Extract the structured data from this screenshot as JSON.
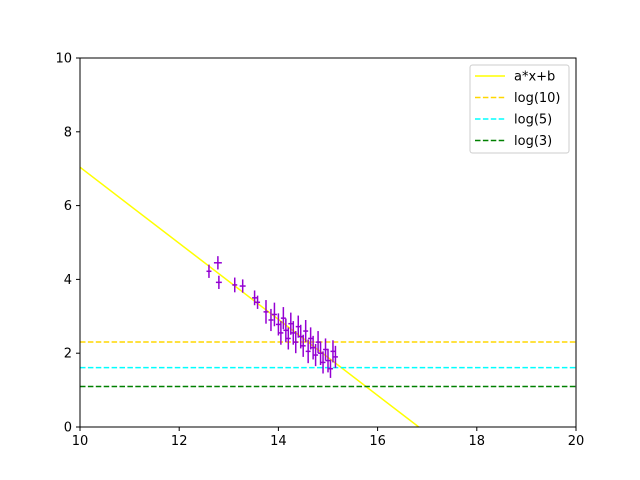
{
  "chart_data": {
    "type": "scatter",
    "title": "",
    "xlabel": "",
    "ylabel": "",
    "xlim": [
      10,
      20
    ],
    "ylim": [
      0,
      10
    ],
    "xticks": [
      10,
      12,
      14,
      16,
      18,
      20
    ],
    "yticks": [
      0,
      2,
      4,
      6,
      8,
      10
    ],
    "grid": false,
    "legend_position": "top-right",
    "series": [
      {
        "name": "a*x+b",
        "kind": "line",
        "style": "solid",
        "color": "#ffff00",
        "x": [
          10,
          16.83
        ],
        "y": [
          7.04,
          0
        ]
      },
      {
        "name": "log(10)",
        "kind": "hline",
        "style": "dashed",
        "color": "#ffd700",
        "y": 2.3026
      },
      {
        "name": "log(5)",
        "kind": "hline",
        "style": "dashed",
        "color": "#00ffff",
        "y": 1.6094
      },
      {
        "name": "log(3)",
        "kind": "hline",
        "style": "dashed",
        "color": "#008000",
        "y": 1.0986
      }
    ],
    "errorbar_data": {
      "color": "#9400d3",
      "points": [
        {
          "x": 12.6,
          "y": 4.22,
          "xerr": 0.05,
          "yerr": 0.18
        },
        {
          "x": 12.78,
          "y": 4.45,
          "xerr": 0.08,
          "yerr": 0.18
        },
        {
          "x": 12.8,
          "y": 3.92,
          "xerr": 0.06,
          "yerr": 0.18
        },
        {
          "x": 13.12,
          "y": 3.85,
          "xerr": 0.05,
          "yerr": 0.2
        },
        {
          "x": 13.28,
          "y": 3.82,
          "xerr": 0.06,
          "yerr": 0.18
        },
        {
          "x": 13.52,
          "y": 3.5,
          "xerr": 0.05,
          "yerr": 0.2
        },
        {
          "x": 13.58,
          "y": 3.38,
          "xerr": 0.05,
          "yerr": 0.18
        },
        {
          "x": 13.75,
          "y": 3.12,
          "xerr": 0.05,
          "yerr": 0.32
        },
        {
          "x": 13.85,
          "y": 2.9,
          "xerr": 0.05,
          "yerr": 0.3
        },
        {
          "x": 13.92,
          "y": 3.05,
          "xerr": 0.05,
          "yerr": 0.32
        },
        {
          "x": 14.0,
          "y": 2.78,
          "xerr": 0.05,
          "yerr": 0.3
        },
        {
          "x": 14.05,
          "y": 2.55,
          "xerr": 0.05,
          "yerr": 0.32
        },
        {
          "x": 14.1,
          "y": 2.95,
          "xerr": 0.05,
          "yerr": 0.3
        },
        {
          "x": 14.15,
          "y": 2.62,
          "xerr": 0.05,
          "yerr": 0.32
        },
        {
          "x": 14.2,
          "y": 2.4,
          "xerr": 0.05,
          "yerr": 0.3
        },
        {
          "x": 14.25,
          "y": 2.8,
          "xerr": 0.05,
          "yerr": 0.3
        },
        {
          "x": 14.3,
          "y": 2.55,
          "xerr": 0.05,
          "yerr": 0.32
        },
        {
          "x": 14.35,
          "y": 2.3,
          "xerr": 0.05,
          "yerr": 0.3
        },
        {
          "x": 14.4,
          "y": 2.72,
          "xerr": 0.05,
          "yerr": 0.3
        },
        {
          "x": 14.45,
          "y": 2.45,
          "xerr": 0.05,
          "yerr": 0.32
        },
        {
          "x": 14.5,
          "y": 2.2,
          "xerr": 0.05,
          "yerr": 0.3
        },
        {
          "x": 14.55,
          "y": 2.6,
          "xerr": 0.05,
          "yerr": 0.3
        },
        {
          "x": 14.6,
          "y": 2.05,
          "xerr": 0.05,
          "yerr": 0.32
        },
        {
          "x": 14.65,
          "y": 2.4,
          "xerr": 0.05,
          "yerr": 0.3
        },
        {
          "x": 14.7,
          "y": 2.15,
          "xerr": 0.05,
          "yerr": 0.32
        },
        {
          "x": 14.75,
          "y": 1.95,
          "xerr": 0.05,
          "yerr": 0.3
        },
        {
          "x": 14.8,
          "y": 2.3,
          "xerr": 0.05,
          "yerr": 0.3
        },
        {
          "x": 14.85,
          "y": 2.0,
          "xerr": 0.05,
          "yerr": 0.32
        },
        {
          "x": 14.9,
          "y": 1.75,
          "xerr": 0.05,
          "yerr": 0.3
        },
        {
          "x": 14.95,
          "y": 2.1,
          "xerr": 0.05,
          "yerr": 0.3
        },
        {
          "x": 15.0,
          "y": 1.8,
          "xerr": 0.05,
          "yerr": 0.32
        },
        {
          "x": 15.05,
          "y": 1.58,
          "xerr": 0.05,
          "yerr": 0.25
        },
        {
          "x": 15.1,
          "y": 2.05,
          "xerr": 0.05,
          "yerr": 0.3
        },
        {
          "x": 15.15,
          "y": 1.9,
          "xerr": 0.05,
          "yerr": 0.3
        }
      ]
    }
  }
}
